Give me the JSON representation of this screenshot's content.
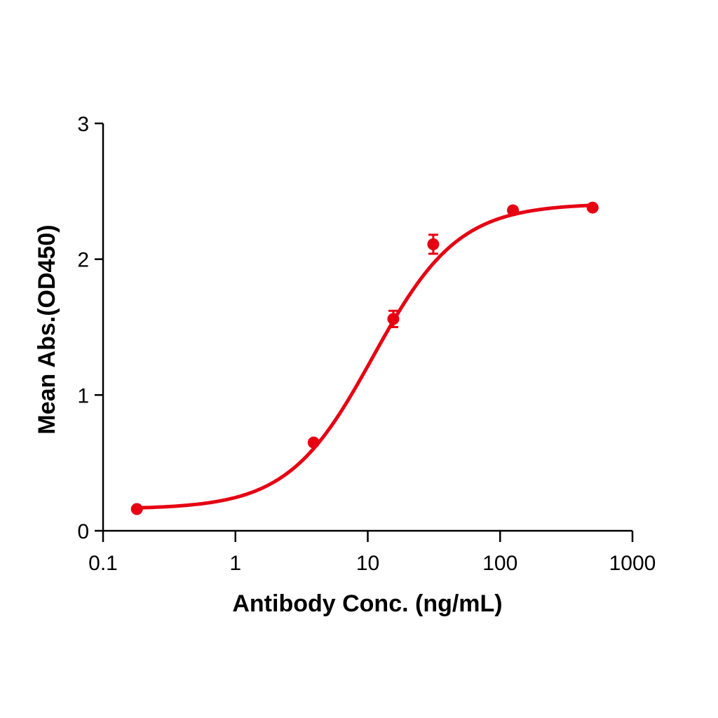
{
  "chart_data": {
    "type": "scatter",
    "title": "",
    "xlabel": "Antibody Conc. (ng/mL)",
    "ylabel": "Mean Abs.(OD450)",
    "xscale": "log",
    "xlim": [
      0.1,
      1000
    ],
    "ylim": [
      0,
      3
    ],
    "x_ticks": [
      0.1,
      1,
      10,
      100,
      1000
    ],
    "x_tick_labels": [
      "0.1",
      "1",
      "10",
      "100",
      "1000"
    ],
    "y_ticks": [
      0,
      1,
      2,
      3
    ],
    "y_tick_labels": [
      "0",
      "1",
      "2",
      "3"
    ],
    "grid": false,
    "legend": null,
    "color": "#E60012",
    "series": [
      {
        "name": "Mean Abs.",
        "points": [
          {
            "x": 0.18,
            "y": 0.16,
            "err": 0.0
          },
          {
            "x": 3.9,
            "y": 0.65,
            "err": 0.0
          },
          {
            "x": 15.6,
            "y": 1.56,
            "err": 0.06
          },
          {
            "x": 31.25,
            "y": 2.11,
            "err": 0.07
          },
          {
            "x": 125,
            "y": 2.36,
            "err": 0.0
          },
          {
            "x": 500,
            "y": 2.38,
            "err": 0.0
          }
        ],
        "fit": {
          "model": "4PL",
          "bottom": 0.16,
          "top": 2.41,
          "ec50": 11,
          "hill": 1.35,
          "x_range": [
            0.18,
            500
          ]
        }
      }
    ]
  }
}
